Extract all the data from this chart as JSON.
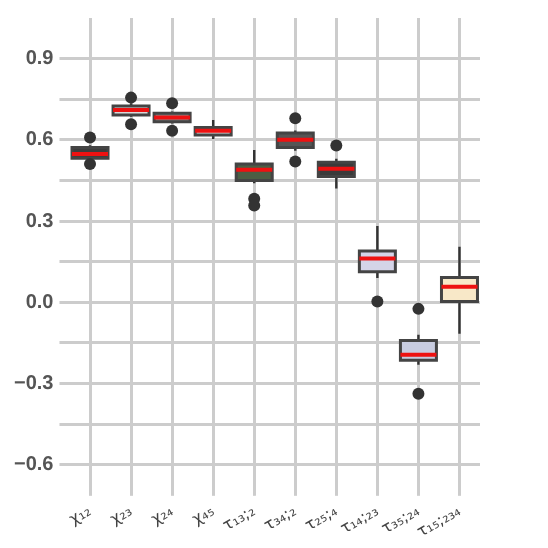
{
  "chart_data": {
    "type": "box",
    "categories": [
      "χ₁₂",
      "χ₂₃",
      "χ₂₄",
      "χ₄₅",
      "τ₁₃;₂",
      "τ₃₄;₂",
      "τ₂₅;₄",
      "τ₁₄;₂₃",
      "τ₃₅;₂₄",
      "τ₁₅;₂₃₄"
    ],
    "ylim": [
      -0.67,
      1.05
    ],
    "yticks": [
      -0.6,
      {
        "value": -0.45,
        "label": null
      },
      -0.3,
      {
        "value": -0.15,
        "label": null
      },
      {
        "value": 0,
        "label": "0.0"
      },
      {
        "value": 0.15,
        "label": null
      },
      0.3,
      {
        "value": 0.45,
        "label": null
      },
      0.6,
      {
        "value": 0.75,
        "label": null
      },
      0.9
    ],
    "grid": true,
    "series": [
      {
        "color": "#ee1111",
        "colors": [
          "#3c3c3c",
          "#d8d8d8",
          "#8a8a8a",
          "#e0e0e0",
          "#4b5e44",
          "#555555",
          "#3a3a3a",
          "#d4d4e8",
          "#c8cce0",
          "#f8e8c8"
        ],
        "boxes": [
          {
            "low": 0.525,
            "q1": 0.532,
            "median": 0.548,
            "q3": 0.572,
            "high": 0.58,
            "outliers": [
              0.609,
              0.511
            ]
          },
          {
            "low": 0.685,
            "q1": 0.692,
            "median": 0.71,
            "q3": 0.725,
            "high": 0.735,
            "outliers": [
              0.756,
              0.658
            ]
          },
          {
            "low": 0.66,
            "q1": 0.667,
            "median": 0.683,
            "q3": 0.698,
            "high": 0.705,
            "outliers": [
              0.735,
              0.634
            ]
          },
          {
            "low": 0.603,
            "q1": 0.618,
            "median": 0.634,
            "q3": 0.646,
            "high": 0.673
          },
          {
            "low": 0.44,
            "q1": 0.45,
            "median": 0.49,
            "q3": 0.511,
            "high": 0.563,
            "outliers": [
              0.383,
              0.358
            ]
          },
          {
            "low": 0.56,
            "q1": 0.572,
            "median": 0.6,
            "q3": 0.625,
            "high": 0.635,
            "outliers": [
              0.68,
              0.52
            ]
          },
          {
            "low": 0.42,
            "q1": 0.465,
            "median": 0.493,
            "q3": 0.517,
            "high": 0.53,
            "outliers": [
              0.579
            ]
          },
          {
            "low": 0.09,
            "q1": 0.113,
            "median": 0.162,
            "q3": 0.19,
            "high": 0.282,
            "outliers": [
              0.003
            ]
          },
          {
            "low": -0.23,
            "q1": -0.214,
            "median": -0.193,
            "q3": -0.141,
            "high": -0.12,
            "outliers": [
              -0.024,
              -0.337
            ]
          },
          {
            "low": -0.116,
            "q1": 0.003,
            "median": 0.058,
            "q3": 0.092,
            "high": 0.205
          }
        ]
      }
    ]
  }
}
